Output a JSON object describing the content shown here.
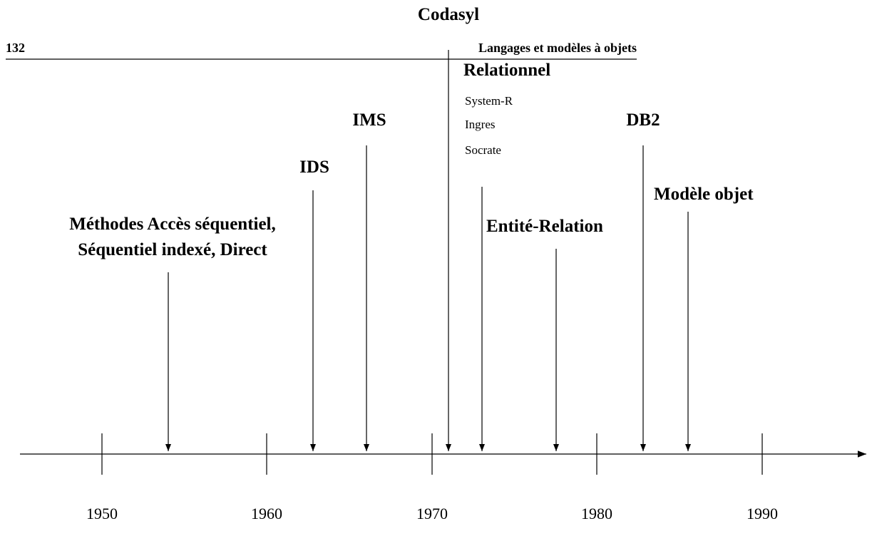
{
  "header": {
    "page_number": "132",
    "running_title": "Langages et modèles à objets"
  },
  "timeline": {
    "years": [
      "1950",
      "1960",
      "1970",
      "1980",
      "1990"
    ]
  },
  "events": [
    {
      "lines": [
        "Méthodes Accès séquentiel,",
        "Séquentiel indexé, Direct"
      ]
    },
    {
      "lines": [
        "IDS"
      ]
    },
    {
      "lines": [
        "IMS"
      ]
    },
    {
      "lines": [
        "Codasyl"
      ]
    },
    {
      "lines": [
        "Relationnel"
      ],
      "systems": [
        "System-R",
        "Ingres",
        "Socrate"
      ]
    },
    {
      "lines": [
        "Entité-Relation"
      ]
    },
    {
      "lines": [
        "DB2"
      ]
    },
    {
      "lines": [
        "Modèle objet"
      ]
    }
  ]
}
